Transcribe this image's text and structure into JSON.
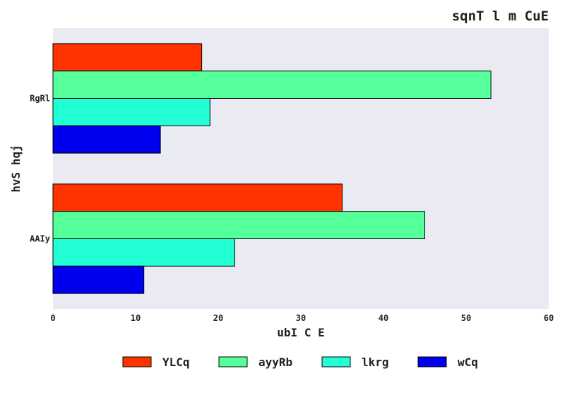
{
  "chart_data": {
    "type": "bar",
    "orientation": "horizontal",
    "title": "sqnT  l m CuE",
    "xlabel": "ubI C E",
    "ylabel": "hvS hqj",
    "categories": [
      "AAIy",
      "RgRl"
    ],
    "xlim": [
      0,
      60
    ],
    "xticks": [
      0,
      10,
      20,
      30,
      40,
      50,
      60
    ],
    "grid": false,
    "legend_position": "bottom",
    "series": [
      {
        "name": "YLCq",
        "color": "#ff3300",
        "values": [
          35,
          18
        ]
      },
      {
        "name": "ayyRb",
        "color": "#55ff99",
        "values": [
          45,
          53
        ]
      },
      {
        "name": "lkrg",
        "color": "#22ffd4",
        "values": [
          22,
          19
        ]
      },
      {
        "name": "wCq",
        "color": "#0000ee",
        "values": [
          11,
          13
        ]
      }
    ],
    "plot_background": "#eaeaf2"
  }
}
